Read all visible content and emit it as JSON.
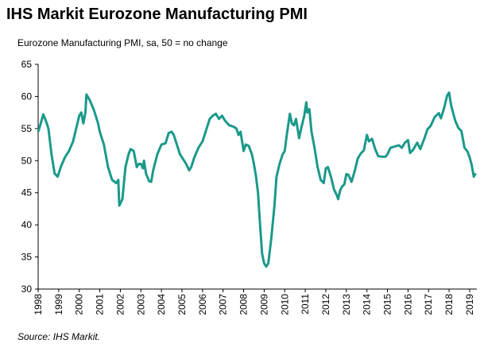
{
  "chart_data": {
    "type": "line",
    "title": "IHS Markit Eurozone Manufacturing PMI",
    "subtitle": "Eurozone Manufacturing PMI, sa, 50 = no change",
    "source": "Source: IHS Markit.",
    "xlim": [
      1998,
      2019.35
    ],
    "ylim": [
      30,
      65
    ],
    "xticks": [
      1998,
      1999,
      2000,
      2001,
      2002,
      2003,
      2004,
      2005,
      2006,
      2007,
      2008,
      2009,
      2010,
      2011,
      2012,
      2013,
      2014,
      2015,
      2016,
      2017,
      2018,
      2019
    ],
    "yticks": [
      30,
      35,
      40,
      45,
      50,
      55,
      60,
      65
    ],
    "series": [
      {
        "color": "#1b998b",
        "x": [
          1998.0,
          1998.1,
          1998.25,
          1998.4,
          1998.5,
          1998.65,
          1998.8,
          1998.95,
          1999.1,
          1999.3,
          1999.5,
          1999.7,
          1999.85,
          2000.0,
          2000.1,
          2000.2,
          2000.3,
          2000.35,
          2000.5,
          2000.7,
          2000.9,
          2001.0,
          2001.2,
          2001.4,
          2001.6,
          2001.8,
          2001.9,
          2001.95,
          2002.1,
          2002.25,
          2002.4,
          2002.5,
          2002.65,
          2002.8,
          2002.9,
          2003.0,
          2003.1,
          2003.15,
          2003.25,
          2003.4,
          2003.5,
          2003.6,
          2003.8,
          2004.0,
          2004.2,
          2004.35,
          2004.5,
          2004.6,
          2004.75,
          2004.9,
          2005.0,
          2005.2,
          2005.35,
          2005.45,
          2005.6,
          2005.8,
          2006.0,
          2006.2,
          2006.35,
          2006.5,
          2006.65,
          2006.8,
          2006.95,
          2007.1,
          2007.3,
          2007.5,
          2007.65,
          2007.75,
          2007.85,
          2007.95,
          2008.0,
          2008.1,
          2008.25,
          2008.4,
          2008.5,
          2008.6,
          2008.7,
          2008.8,
          2008.9,
          2009.0,
          2009.1,
          2009.2,
          2009.35,
          2009.5,
          2009.6,
          2009.75,
          2009.9,
          2010.0,
          2010.1,
          2010.25,
          2010.35,
          2010.45,
          2010.55,
          2010.7,
          2010.8,
          2010.95,
          2011.05,
          2011.1,
          2011.2,
          2011.3,
          2011.45,
          2011.6,
          2011.75,
          2011.9,
          2012.0,
          2012.1,
          2012.25,
          2012.4,
          2012.55,
          2012.6,
          2012.7,
          2012.8,
          2012.9,
          2013.0,
          2013.1,
          2013.25,
          2013.4,
          2013.55,
          2013.7,
          2013.85,
          2014.0,
          2014.1,
          2014.25,
          2014.4,
          2014.55,
          2014.75,
          2014.9,
          2015.0,
          2015.15,
          2015.35,
          2015.55,
          2015.7,
          2015.85,
          2016.0,
          2016.1,
          2016.25,
          2016.45,
          2016.6,
          2016.8,
          2016.95,
          2017.1,
          2017.3,
          2017.5,
          2017.6,
          2017.75,
          2017.9,
          2018.0,
          2018.1,
          2018.3,
          2018.45,
          2018.6,
          2018.75,
          2018.9,
          2019.0,
          2019.1,
          2019.2,
          2019.25,
          2019.3
        ],
        "values": [
          54.5,
          55.5,
          57.2,
          56,
          55,
          51,
          48,
          47.5,
          49,
          50.5,
          51.5,
          53,
          55,
          57,
          57.5,
          55.8,
          57.5,
          60.3,
          59.5,
          58,
          56,
          54.5,
          52.5,
          49,
          47,
          46.5,
          47,
          43,
          44,
          49,
          51,
          51.8,
          51.5,
          49,
          49.5,
          49.5,
          48.8,
          50,
          48,
          46.8,
          46.7,
          48.5,
          51,
          52.5,
          52.7,
          54.3,
          54.5,
          54,
          52.5,
          51,
          50.5,
          49.5,
          48.5,
          49,
          50.5,
          52,
          53,
          55,
          56.5,
          57,
          57.3,
          56.5,
          57,
          56.2,
          55.5,
          55.3,
          55,
          54,
          54.5,
          52.5,
          51.5,
          52.5,
          52.3,
          51,
          49.5,
          47.6,
          45,
          40,
          35.5,
          34,
          33.5,
          34,
          38,
          43,
          47.5,
          49.5,
          51,
          51.5,
          54,
          57.3,
          55.8,
          55.5,
          56.5,
          53.5,
          55,
          57,
          59.1,
          57.5,
          58,
          54.6,
          52,
          49,
          47,
          46.5,
          48.8,
          49,
          47.5,
          45.5,
          44.5,
          44,
          45.4,
          46,
          46.3,
          47.9,
          47.8,
          46.7,
          48.3,
          50.3,
          51.1,
          51.6,
          54,
          53,
          53.4,
          51.8,
          50.7,
          50.6,
          50.6,
          51,
          52,
          52.2,
          52.4,
          52,
          52.8,
          53.2,
          51.2,
          51.7,
          52.8,
          51.8,
          53.5,
          54.9,
          55.4,
          56.8,
          57.4,
          56.6,
          58.1,
          60.1,
          60.6,
          58.6,
          56.2,
          55.1,
          54.6,
          52,
          51.4,
          50.5,
          49.3,
          47.5,
          47.8,
          48
        ]
      }
    ]
  }
}
